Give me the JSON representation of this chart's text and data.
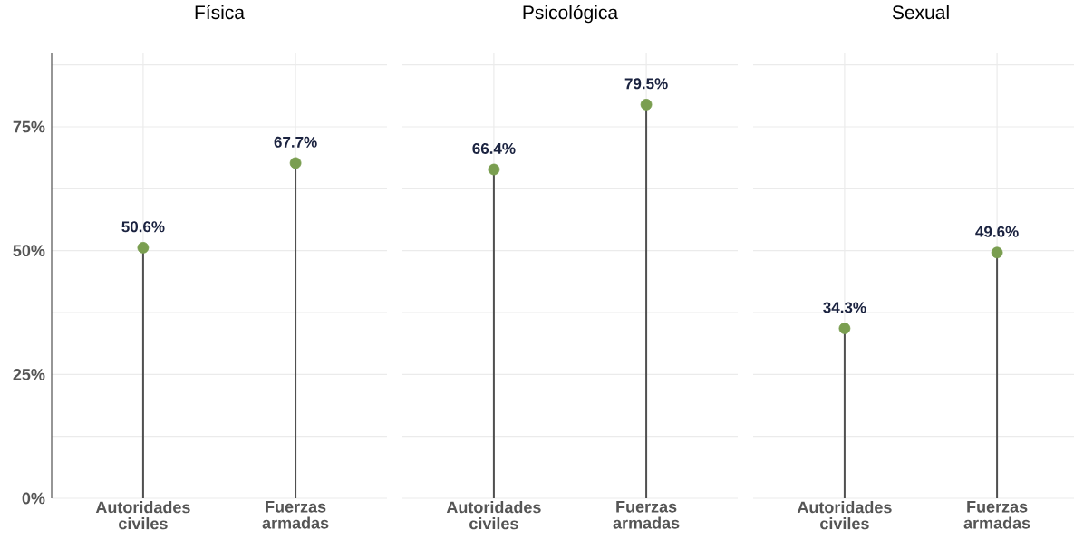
{
  "chart_data": [
    {
      "type": "lollipop",
      "title": "Física",
      "categories": [
        "Autoridades civiles",
        "Fuerzas armadas"
      ],
      "values": [
        50.6,
        67.7
      ],
      "value_labels": [
        "50.6%",
        "67.7%"
      ],
      "color": "#7a9e50",
      "marker": "circle",
      "ylim": [
        0,
        90
      ],
      "yticks": [
        {
          "value": 0,
          "label": "0%"
        },
        {
          "value": 12.5,
          "label": null
        },
        {
          "value": 25,
          "label": "25%"
        },
        {
          "value": 37.5,
          "label": null
        },
        {
          "value": 50,
          "label": "50%"
        },
        {
          "value": 62.5,
          "label": null
        },
        {
          "value": 75,
          "label": "75%"
        },
        {
          "value": 87.5,
          "label": null
        }
      ],
      "grid": true
    },
    {
      "type": "lollipop",
      "title": "Psicológica",
      "categories": [
        "Autoridades civiles",
        "Fuerzas armadas"
      ],
      "values": [
        66.4,
        79.5
      ],
      "value_labels": [
        "66.4%",
        "79.5%"
      ],
      "color": "#7a9e50",
      "marker": "circle",
      "ylim": [
        0,
        90
      ],
      "yticks": [
        {
          "value": 0,
          "label": null
        },
        {
          "value": 12.5,
          "label": null
        },
        {
          "value": 25,
          "label": null
        },
        {
          "value": 37.5,
          "label": null
        },
        {
          "value": 50,
          "label": null
        },
        {
          "value": 62.5,
          "label": null
        },
        {
          "value": 75,
          "label": null
        },
        {
          "value": 87.5,
          "label": null
        }
      ],
      "grid": true,
      "tick_labels": "x"
    },
    {
      "type": "lollipop",
      "title": "Sexual",
      "categories": [
        "Autoridades civiles",
        "Fuerzas armadas"
      ],
      "values": [
        34.3,
        49.6
      ],
      "value_labels": [
        "34.3%",
        "49.6%"
      ],
      "color": "#7a9e50",
      "marker": "circle",
      "ylim": [
        0,
        90
      ],
      "yticks": [
        {
          "value": 0,
          "label": null
        },
        {
          "value": 12.5,
          "label": null
        },
        {
          "value": 25,
          "label": null
        },
        {
          "value": 37.5,
          "label": null
        },
        {
          "value": 50,
          "label": null
        },
        {
          "value": 62.5,
          "label": null
        },
        {
          "value": 75,
          "label": null
        },
        {
          "value": 87.5,
          "label": null
        }
      ],
      "grid": true,
      "tick_labels": "x"
    }
  ]
}
